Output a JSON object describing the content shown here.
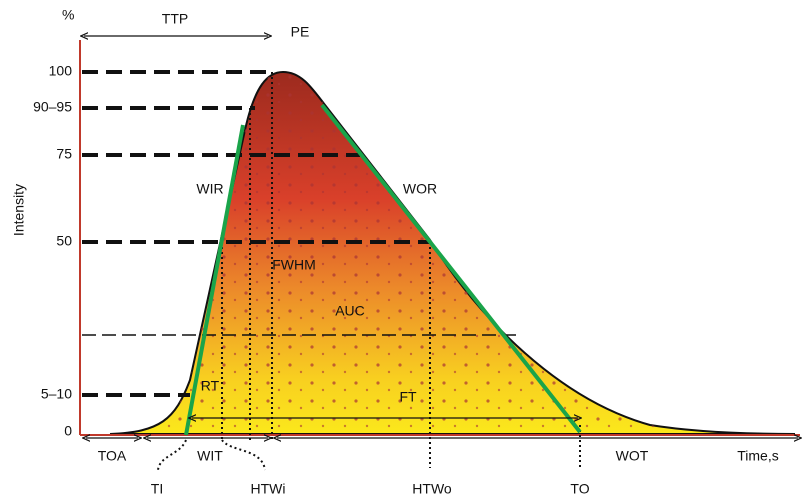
{
  "axis": {
    "unit": "%",
    "y_label": "Intensity",
    "levels": [
      "100",
      "90–95",
      "75",
      "50",
      "5–10",
      "0"
    ],
    "x_label": "Time,s"
  },
  "annotations": {
    "ttp": "TTP",
    "pe": "PE",
    "wir": "WIR",
    "wor": "WOR",
    "fwhm": "FWHM",
    "auc": "AUC",
    "rt": "RT",
    "ft": "FT"
  },
  "intervals": {
    "toa": "TOA",
    "wit": "WIT",
    "wot": "WOT"
  },
  "points": {
    "ti": "TI",
    "htwi": "HTWi",
    "htwo": "HTWo",
    "to": "TO"
  }
}
